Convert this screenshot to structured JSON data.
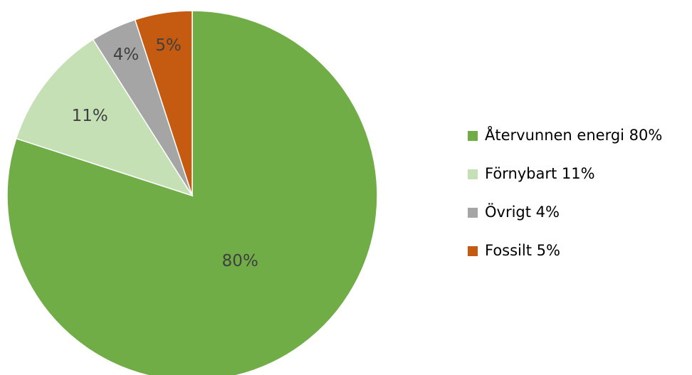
{
  "chart_data": {
    "type": "pie",
    "start_angle": "12 o'clock, clockwise",
    "slices": [
      {
        "label": "Återvunnen energi",
        "value": 80,
        "data_label": "80%",
        "legend": "Återvunnen energi 80%",
        "color": "#70ad47"
      },
      {
        "label": "Förnybart",
        "value": 11,
        "data_label": "11%",
        "legend": "Förnybart 11%",
        "color": "#c5e0b4"
      },
      {
        "label": "Övrigt",
        "value": 4,
        "data_label": "4%",
        "legend": "Övrigt 4%",
        "color": "#a5a5a5"
      },
      {
        "label": "Fossilt",
        "value": 5,
        "data_label": "5%",
        "legend": "Fossilt 5%",
        "color": "#c55a11"
      }
    ],
    "legend_position": "right"
  }
}
